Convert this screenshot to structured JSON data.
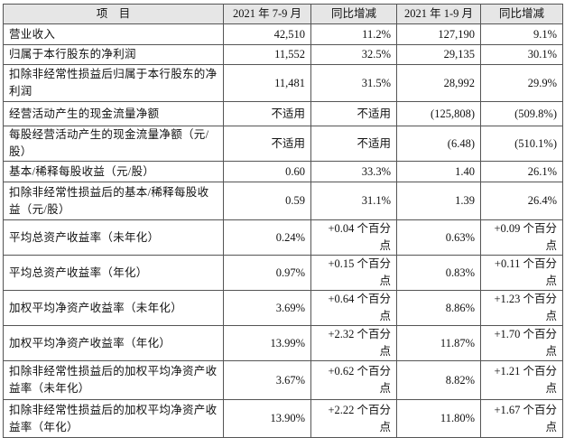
{
  "table": {
    "header": [
      "项　目",
      "2021 年 7-9 月",
      "同比增减",
      "2021 年 1-9 月",
      "同比增减"
    ],
    "rows": [
      [
        "营业收入",
        "42,510",
        "11.2%",
        "127,190",
        "9.1%"
      ],
      [
        "归属于本行股东的净利润",
        "11,552",
        "32.5%",
        "29,135",
        "30.1%"
      ],
      [
        "扣除非经常性损益后归属于本行股东的净利润",
        "11,481",
        "31.5%",
        "28,992",
        "29.9%"
      ],
      [
        "经营活动产生的现金流量净额",
        "不适用",
        "不适用",
        "(125,808)",
        "(509.8%)"
      ],
      [
        "每股经营活动产生的现金流量净额（元/股）",
        "不适用",
        "不适用",
        "(6.48)",
        "(510.1%)"
      ],
      [
        "基本/稀释每股收益（元/股）",
        "0.60",
        "33.3%",
        "1.40",
        "26.1%"
      ],
      [
        "扣除非经常性损益后的基本/稀释每股收益（元/股）",
        "0.59",
        "31.1%",
        "1.39",
        "26.4%"
      ],
      [
        "平均总资产收益率（未年化）",
        "0.24%",
        "+0.04 个百分点",
        "0.63%",
        "+0.09 个百分点"
      ],
      [
        "平均总资产收益率（年化）",
        "0.97%",
        "+0.15 个百分点",
        "0.83%",
        "+0.11 个百分点"
      ],
      [
        "加权平均净资产收益率（未年化）",
        "3.69%",
        "+0.64 个百分点",
        "8.86%",
        "+1.23 个百分点"
      ],
      [
        "加权平均净资产收益率（年化）",
        "13.99%",
        "+2.32 个百分点",
        "11.87%",
        "+1.70 个百分点"
      ],
      [
        "扣除非经常性损益后的加权平均净资产收益率（未年化）",
        "3.67%",
        "+0.62 个百分点",
        "8.82%",
        "+1.21 个百分点"
      ],
      [
        "扣除非经常性损益后的加权平均净资产收益率（年化）",
        "13.90%",
        "+2.22 个百分点",
        "11.80%",
        "+1.67 个百分点"
      ]
    ]
  }
}
